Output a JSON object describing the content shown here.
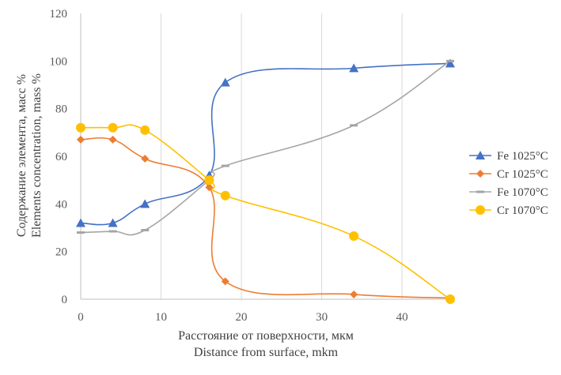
{
  "chart_data": {
    "type": "line",
    "xlabel_ru": "Расстояние от поверхности, мкм",
    "xlabel_en": "Distance from surface, mkm",
    "ylabel_ru": "Содержание элемента, масс %",
    "ylabel_en": "Elements concentration, mass %",
    "xlim": [
      0,
      46
    ],
    "ylim": [
      0,
      120
    ],
    "x_ticks": [
      0,
      10,
      20,
      30,
      40
    ],
    "x_tick_labels": [
      "0",
      "10",
      "20",
      "30",
      "40"
    ],
    "y_ticks": [
      0,
      20,
      40,
      60,
      80,
      100,
      120
    ],
    "y_tick_labels": [
      "0",
      "20",
      "40",
      "60",
      "80",
      "100",
      "120"
    ],
    "grid": "vertical",
    "legend_position": "right",
    "series": [
      {
        "name": "Fe 1025°C",
        "color": "#4472c4",
        "marker": "triangle",
        "x": [
          0,
          4,
          8,
          16,
          18,
          34,
          46
        ],
        "y": [
          32,
          32,
          40,
          52,
          91,
          97,
          99
        ]
      },
      {
        "name": "Cr 1025°C",
        "color": "#ed7d31",
        "marker": "diamond",
        "x": [
          0,
          4,
          8,
          16,
          18,
          34,
          46
        ],
        "y": [
          67,
          67,
          59,
          47,
          7.5,
          2,
          0.5
        ]
      },
      {
        "name": "Fe 1070°C",
        "color": "#a5a5a5",
        "marker": "dash",
        "x": [
          0,
          4,
          8,
          16,
          18,
          34,
          46
        ],
        "y": [
          28,
          28.5,
          29,
          50,
          56,
          73,
          100
        ]
      },
      {
        "name": "Cr 1070°C",
        "color": "#ffc000",
        "marker": "circle",
        "x": [
          0,
          4,
          8,
          16,
          18,
          34,
          46
        ],
        "y": [
          72,
          72,
          71,
          50,
          43.5,
          26.5,
          0
        ]
      }
    ]
  }
}
